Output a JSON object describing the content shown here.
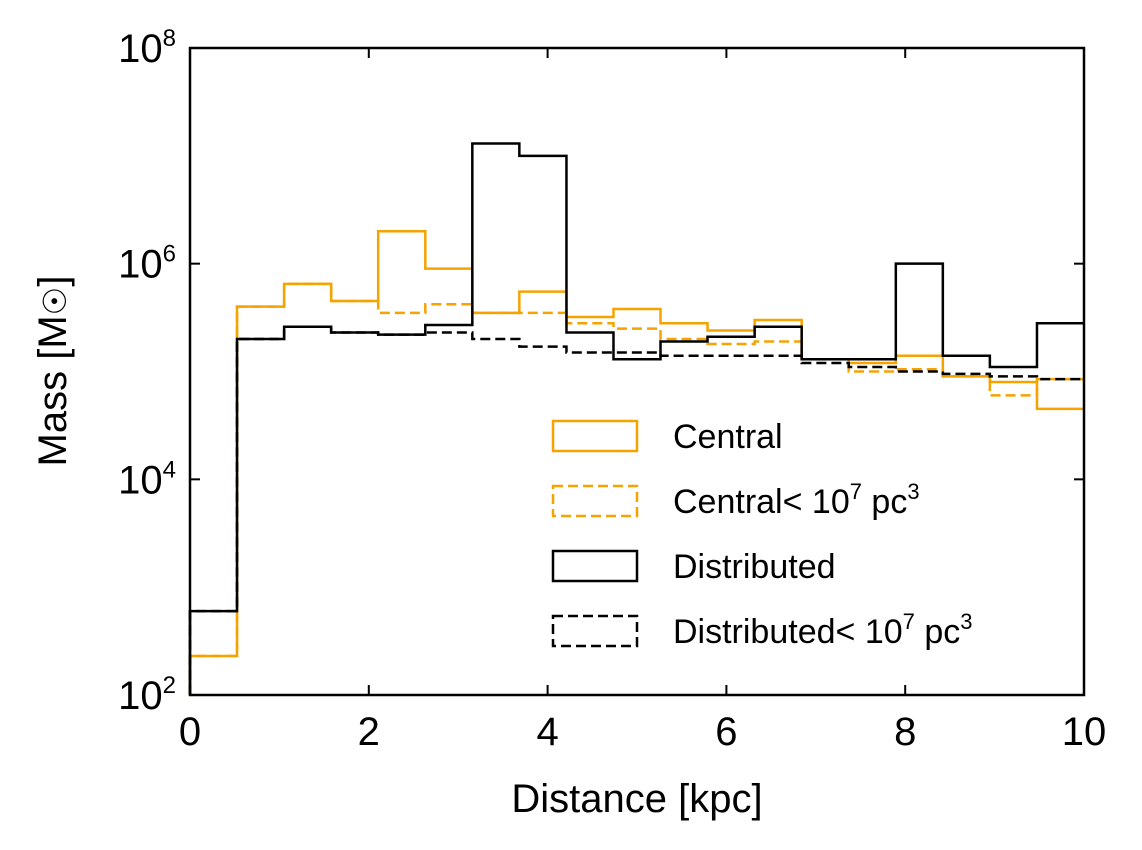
{
  "chart_data": {
    "type": "step-histogram",
    "xlabel": "Distance [kpc]",
    "ylabel": "Mass [M",
    "ylabel_symbol": "☉",
    "ylabel_close": "]",
    "xlim": [
      0,
      10
    ],
    "ylim_log10": [
      2,
      8
    ],
    "y_scale": "log",
    "x_ticks": [
      {
        "value": 0,
        "label": "0"
      },
      {
        "value": 2,
        "label": "2"
      },
      {
        "value": 4,
        "label": "4"
      },
      {
        "value": 6,
        "label": "6"
      },
      {
        "value": 8,
        "label": "8"
      },
      {
        "value": 10,
        "label": "10"
      }
    ],
    "y_ticks": [
      {
        "exp": 2,
        "base": "10",
        "sup": "2"
      },
      {
        "exp": 4,
        "base": "10",
        "sup": "4"
      },
      {
        "exp": 6,
        "base": "10",
        "sup": "6"
      },
      {
        "exp": 8,
        "base": "10",
        "sup": "8"
      }
    ],
    "bin_edges": [
      0,
      0.526,
      1.053,
      1.579,
      2.105,
      2.632,
      3.158,
      3.684,
      4.211,
      4.737,
      5.263,
      5.789,
      6.316,
      6.842,
      7.368,
      7.895,
      8.421,
      8.947,
      9.474,
      10
    ],
    "series": [
      {
        "name": "Central",
        "legend_text": "Central",
        "color": "#f5a300",
        "dashed": false,
        "values": [
          230,
          400000,
          650000,
          450000,
          2000000,
          900000,
          350000,
          550000,
          320000,
          380000,
          280000,
          240000,
          300000,
          130000,
          120000,
          140000,
          90000,
          80000,
          45000
        ]
      },
      {
        "name": "Central <10^7 pc^3",
        "legend_text": "Central",
        "legend_tail": "< 10",
        "legend_exp": "7",
        "legend_unit": " pc",
        "legend_unit_exp": "3",
        "color": "#f5a300",
        "dashed": true,
        "values": [
          230,
          400000,
          650000,
          450000,
          350000,
          420000,
          350000,
          350000,
          280000,
          250000,
          200000,
          180000,
          190000,
          130000,
          100000,
          105000,
          90000,
          60000,
          85000
        ]
      },
      {
        "name": "Distributed",
        "legend_text": "Distributed",
        "color": "#000000",
        "dashed": false,
        "values": [
          600,
          200000,
          260000,
          230000,
          220000,
          270000,
          13000000,
          10000000,
          230000,
          130000,
          190000,
          210000,
          260000,
          130000,
          130000,
          1000000,
          140000,
          110000,
          280000
        ]
      },
      {
        "name": "Distributed <10^7 pc^3",
        "legend_text": "Distributed",
        "legend_tail": "< 10",
        "legend_exp": "7",
        "legend_unit": " pc",
        "legend_unit_exp": "3",
        "color": "#000000",
        "dashed": true,
        "values": [
          600,
          200000,
          260000,
          230000,
          220000,
          230000,
          200000,
          170000,
          150000,
          150000,
          140000,
          140000,
          140000,
          120000,
          110000,
          100000,
          95000,
          90000,
          85000
        ]
      }
    ],
    "legend_placement": "lower-right"
  }
}
